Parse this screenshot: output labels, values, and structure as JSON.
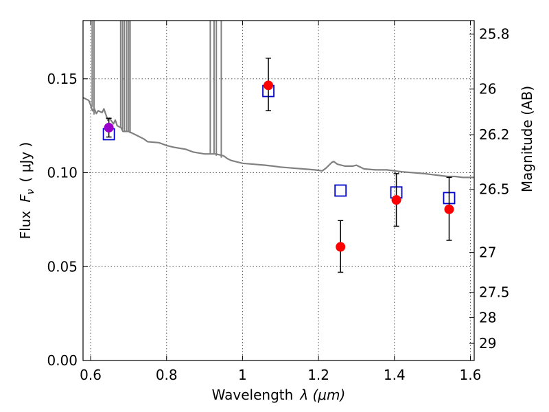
{
  "chart_data": {
    "type": "scatter",
    "xlabel_text": "Wavelength",
    "xlabel_math": "λ (μm)",
    "ylabel_text": "Flux",
    "ylabel_math": "F",
    "ylabel_sub": "ν",
    "ylabel_unit": "( μJy )",
    "y2label": "Magnitude (AB)",
    "xlim": [
      0.58,
      1.61
    ],
    "ylim": [
      0.0,
      0.181
    ],
    "grid": true,
    "x_ticks": [
      {
        "value": 0.6,
        "label": "0.6"
      },
      {
        "value": 0.8,
        "label": "0.8"
      },
      {
        "value": 1.0,
        "label": "1"
      },
      {
        "value": 1.2,
        "label": "1.2"
      },
      {
        "value": 1.4,
        "label": "1.4"
      },
      {
        "value": 1.6,
        "label": "1.6"
      }
    ],
    "y_ticks": [
      {
        "value": 0.0,
        "label": "0.00"
      },
      {
        "value": 0.05,
        "label": "0.05"
      },
      {
        "value": 0.1,
        "label": "0.10"
      },
      {
        "value": 0.15,
        "label": "0.15"
      }
    ],
    "y2_ticks": [
      {
        "label": "25.8",
        "magnitude": 25.8
      },
      {
        "label": "26",
        "magnitude": 26.0
      },
      {
        "label": "26.2",
        "magnitude": 26.2
      },
      {
        "label": "26.5",
        "magnitude": 26.5
      },
      {
        "label": "27",
        "magnitude": 27.0
      },
      {
        "label": "27.5",
        "magnitude": 27.5
      },
      {
        "label": "28",
        "magnitude": 28.0
      },
      {
        "label": "29",
        "magnitude": 29.0
      }
    ],
    "observed": [
      {
        "x": 0.648,
        "y": 0.124,
        "yerr_low": 0.119,
        "yerr_high": 0.129,
        "color": "#9900cc"
      },
      {
        "x": 1.068,
        "y": 0.1465,
        "yerr_low": 0.133,
        "yerr_high": 0.161,
        "color": "#ff0000"
      },
      {
        "x": 1.258,
        "y": 0.0605,
        "yerr_low": 0.047,
        "yerr_high": 0.0745,
        "color": "#ff0000"
      },
      {
        "x": 1.405,
        "y": 0.0855,
        "yerr_low": 0.0715,
        "yerr_high": 0.0995,
        "color": "#ff0000"
      },
      {
        "x": 1.544,
        "y": 0.0805,
        "yerr_low": 0.064,
        "yerr_high": 0.0975,
        "color": "#ff0000"
      }
    ],
    "model_band_flux": [
      {
        "x": 0.648,
        "y": 0.1205
      },
      {
        "x": 1.068,
        "y": 0.1435
      },
      {
        "x": 1.258,
        "y": 0.0905
      },
      {
        "x": 1.405,
        "y": 0.0895
      },
      {
        "x": 1.544,
        "y": 0.0865
      }
    ],
    "sed_model": [
      [
        0.58,
        0.14
      ],
      [
        0.595,
        0.1385
      ],
      [
        0.6,
        0.136
      ],
      [
        0.605,
        0.133
      ],
      [
        0.61,
        0.134
      ],
      [
        0.615,
        0.1315
      ],
      [
        0.62,
        0.133
      ],
      [
        0.63,
        0.132
      ],
      [
        0.635,
        0.134
      ],
      [
        0.64,
        0.131
      ],
      [
        0.645,
        0.128
      ],
      [
        0.65,
        0.129
      ],
      [
        0.66,
        0.126
      ],
      [
        0.665,
        0.128
      ],
      [
        0.67,
        0.125
      ],
      [
        0.68,
        0.124
      ],
      [
        0.685,
        0.122
      ],
      [
        0.7,
        0.122
      ],
      [
        0.72,
        0.12
      ],
      [
        0.74,
        0.118
      ],
      [
        0.75,
        0.1165
      ],
      [
        0.78,
        0.116
      ],
      [
        0.8,
        0.1145
      ],
      [
        0.82,
        0.1135
      ],
      [
        0.85,
        0.1125
      ],
      [
        0.87,
        0.111
      ],
      [
        0.9,
        0.11
      ],
      [
        0.93,
        0.11
      ],
      [
        0.95,
        0.109
      ],
      [
        0.96,
        0.1075
      ],
      [
        0.97,
        0.1065
      ],
      [
        0.98,
        0.106
      ],
      [
        1.0,
        0.105
      ],
      [
        1.03,
        0.1045
      ],
      [
        1.06,
        0.104
      ],
      [
        1.08,
        0.1035
      ],
      [
        1.1,
        0.103
      ],
      [
        1.13,
        0.1025
      ],
      [
        1.16,
        0.102
      ],
      [
        1.19,
        0.1015
      ],
      [
        1.21,
        0.101
      ],
      [
        1.22,
        0.1025
      ],
      [
        1.235,
        0.1055
      ],
      [
        1.24,
        0.106
      ],
      [
        1.25,
        0.1045
      ],
      [
        1.27,
        0.1035
      ],
      [
        1.29,
        0.1035
      ],
      [
        1.3,
        0.104
      ],
      [
        1.32,
        0.102
      ],
      [
        1.35,
        0.1015
      ],
      [
        1.38,
        0.1015
      ],
      [
        1.4,
        0.101
      ],
      [
        1.42,
        0.1005
      ],
      [
        1.45,
        0.1
      ],
      [
        1.48,
        0.0995
      ],
      [
        1.5,
        0.099
      ],
      [
        1.52,
        0.0985
      ],
      [
        1.54,
        0.098
      ],
      [
        1.56,
        0.098
      ],
      [
        1.58,
        0.0975
      ],
      [
        1.6,
        0.0975
      ],
      [
        1.61,
        0.0975
      ]
    ],
    "sed_spikes": [
      {
        "x": 0.604,
        "base": 0.135
      },
      {
        "x": 0.609,
        "base": 0.131
      },
      {
        "x": 0.679,
        "base": 0.124
      },
      {
        "x": 0.684,
        "base": 0.123
      },
      {
        "x": 0.689,
        "base": 0.122
      },
      {
        "x": 0.695,
        "base": 0.122
      },
      {
        "x": 0.7,
        "base": 0.122
      },
      {
        "x": 0.704,
        "base": 0.121
      },
      {
        "x": 0.915,
        "base": 0.11
      },
      {
        "x": 0.925,
        "base": 0.11
      },
      {
        "x": 0.931,
        "base": 0.109
      },
      {
        "x": 0.944,
        "base": 0.108
      }
    ],
    "colors": {
      "sed_line": "#808080",
      "model_marker": "#0000cc",
      "errorbar": "#000000",
      "grid": "#555555"
    }
  }
}
